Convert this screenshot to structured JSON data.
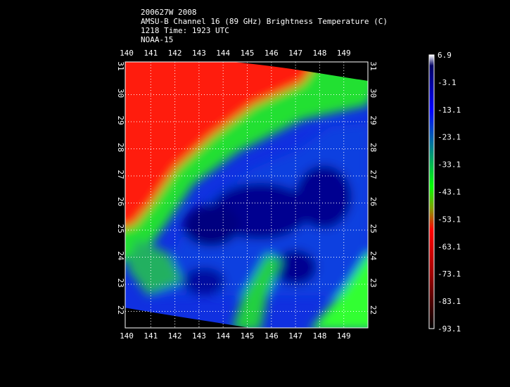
{
  "header": {
    "lines": [
      "200627W 2008",
      "AMSU-B Channel 16 (89 GHz) Brightness Temperature (C)",
      "1218 Time: 1923 UTC",
      "NOAA-15"
    ]
  },
  "map": {
    "lon_labels": [
      140,
      141,
      142,
      143,
      144,
      145,
      146,
      147,
      148,
      149
    ],
    "lat_labels": [
      31,
      30,
      29,
      28,
      27,
      26,
      25,
      24,
      23,
      22
    ]
  },
  "colorbar": {
    "labels": [
      6.9,
      -3.1,
      -13.1,
      -23.1,
      -33.1,
      -43.1,
      -53.1,
      -63.1,
      -73.1,
      -83.1,
      -93.1
    ]
  }
}
